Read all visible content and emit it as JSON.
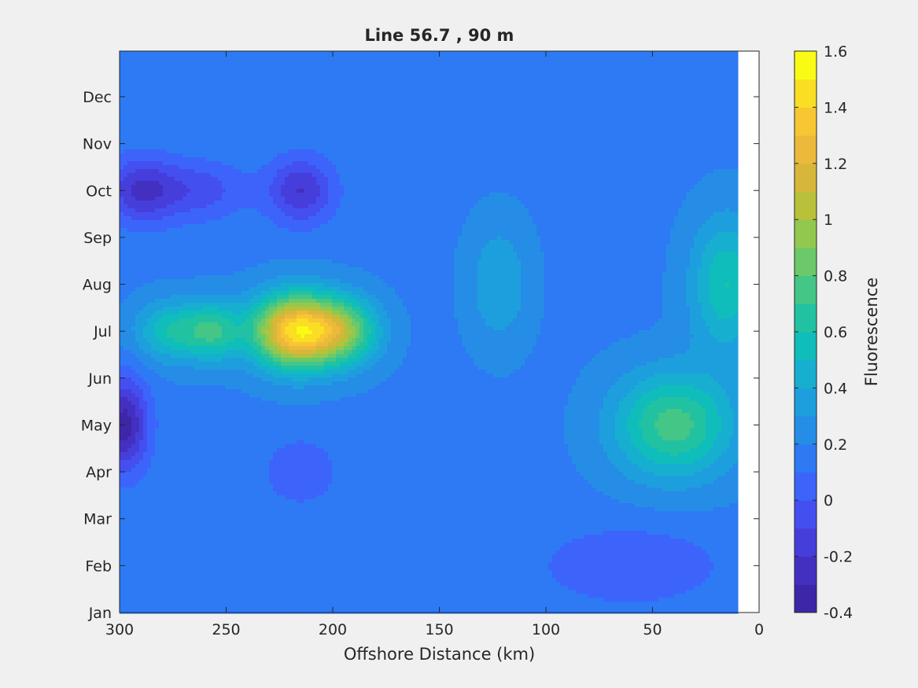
{
  "chart_data": {
    "type": "heatmap",
    "title": "Line 56.7 , 90 m",
    "xlabel": "Offshore Distance (km)",
    "ylabel": "",
    "x_reversed": true,
    "xlim": [
      300,
      0
    ],
    "x_ticks": [
      300,
      250,
      200,
      150,
      100,
      50,
      0
    ],
    "y_ticks": [
      "Jan",
      "Feb",
      "Mar",
      "Apr",
      "May",
      "Jun",
      "Jul",
      "Aug",
      "Sep",
      "Oct",
      "Nov",
      "Dec"
    ],
    "colorbar": {
      "label": "Fluorescence",
      "range": [
        -0.4,
        1.6
      ],
      "ticks": [
        -0.4,
        -0.2,
        0,
        0.2,
        0.4,
        0.6,
        0.8,
        1,
        1.2,
        1.4,
        1.6
      ],
      "tick_labels": [
        "-0.4",
        "-0.2",
        "0",
        "0.2",
        "0.4",
        "0.6",
        "0.8",
        "1",
        "1.2",
        "1.4",
        "1.6"
      ],
      "levels": 20,
      "colormap": [
        "#3e26a8",
        "#4433c8",
        "#4746e8",
        "#3f5ffd",
        "#2c7cf3",
        "#2293e2",
        "#1ba9d8",
        "#0dbcbe",
        "#23c39f",
        "#53c87b",
        "#86ca56",
        "#b7c13a",
        "#ddb53a",
        "#f7bb3b",
        "#fad627",
        "#f9fb15"
      ]
    },
    "background_value": 0.18,
    "features": [
      {
        "x": 218,
        "y": "Jul",
        "value": 1.4,
        "sx": 14,
        "sy": 0.55
      },
      {
        "x": 195,
        "y": "Jul",
        "value": 0.8,
        "sx": 12,
        "sy": 0.5
      },
      {
        "x": 275,
        "y": "Jul",
        "value": 0.6,
        "sx": 12,
        "sy": 0.45
      },
      {
        "x": 255,
        "y": "Jul",
        "value": 0.6,
        "sx": 9,
        "sy": 0.45
      },
      {
        "x": 40,
        "y": "May",
        "value": 0.75,
        "sx": 20,
        "sy": 0.8
      },
      {
        "x": 15,
        "y": "Aug",
        "value": 0.6,
        "sx": 12,
        "sy": 1.0
      },
      {
        "x": 122,
        "y": "Aug",
        "value": 0.4,
        "sx": 10,
        "sy": 0.9
      },
      {
        "x": 290,
        "y": "Oct",
        "value": -0.2,
        "sx": 12,
        "sy": 0.5
      },
      {
        "x": 262,
        "y": "Oct",
        "value": -0.05,
        "sx": 15,
        "sy": 0.45
      },
      {
        "x": 215,
        "y": "Oct",
        "value": -0.2,
        "sx": 11,
        "sy": 0.5
      },
      {
        "x": 298,
        "y": "May",
        "value": -0.35,
        "sx": 8,
        "sy": 0.7
      },
      {
        "x": 60,
        "y": "Feb",
        "value": 0.0,
        "sx": 30,
        "sy": 0.6
      },
      {
        "x": 215,
        "y": "Apr",
        "value": 0.0,
        "sx": 12,
        "sy": 0.5
      }
    ]
  }
}
